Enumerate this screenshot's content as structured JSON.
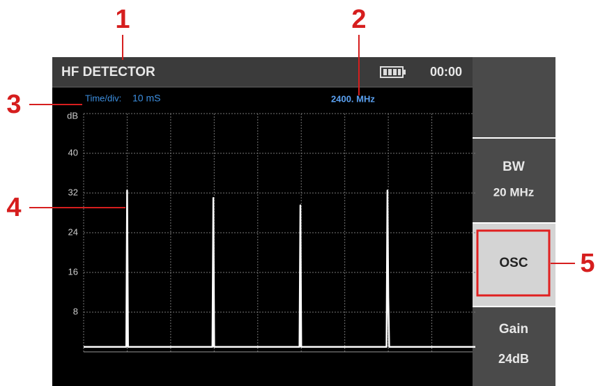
{
  "header": {
    "title": "HF DETECTOR",
    "time": "00:00"
  },
  "info": {
    "time_div_label": "Time/div:",
    "time_div": "10 mS",
    "frequency": "2400. MHz"
  },
  "chart_data": {
    "type": "line",
    "y_label": "dB",
    "ylim": [
      0,
      48
    ],
    "yticks": [
      8,
      16,
      24,
      32,
      40
    ],
    "xlim": [
      0,
      90
    ],
    "grid": true,
    "color": "#ffffff",
    "x": [
      0,
      9.8,
      10,
      10.2,
      29.6,
      29.8,
      30,
      49.6,
      49.8,
      50,
      69.6,
      69.8,
      70,
      70.2,
      90
    ],
    "values": [
      1,
      1,
      32.5,
      1,
      1,
      31,
      1,
      1,
      29.5,
      1,
      1,
      32.5,
      11,
      1,
      1
    ]
  },
  "buttons": [
    {
      "label": "BW",
      "value": "20 MHz"
    },
    {
      "label": "OSC"
    },
    {
      "label": "Gain",
      "value": "24dB"
    }
  ],
  "callouts": [
    "1",
    "2",
    "3",
    "4",
    "5"
  ]
}
